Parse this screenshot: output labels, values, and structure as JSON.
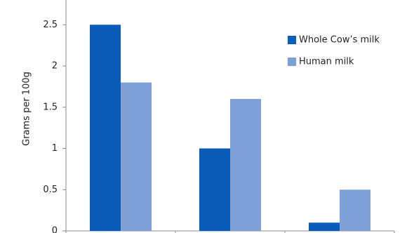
{
  "chart_data": {
    "type": "bar",
    "y_label": "Grams per 100g",
    "categories": [
      null,
      null,
      null
    ],
    "series": [
      {
        "name": "Whole Cow’s milk",
        "color": "#0b5cb9",
        "values": [
          2.5,
          1.0,
          0.1
        ]
      },
      {
        "name": "Human milk",
        "color": "#7fa0d7",
        "values": [
          1.8,
          1.6,
          0.5
        ]
      }
    ],
    "ylim": [
      0,
      2.8
    ],
    "yticks": [
      0,
      0.5,
      1,
      1.5,
      2,
      2.5
    ],
    "grid": false,
    "legend": "upper right"
  }
}
